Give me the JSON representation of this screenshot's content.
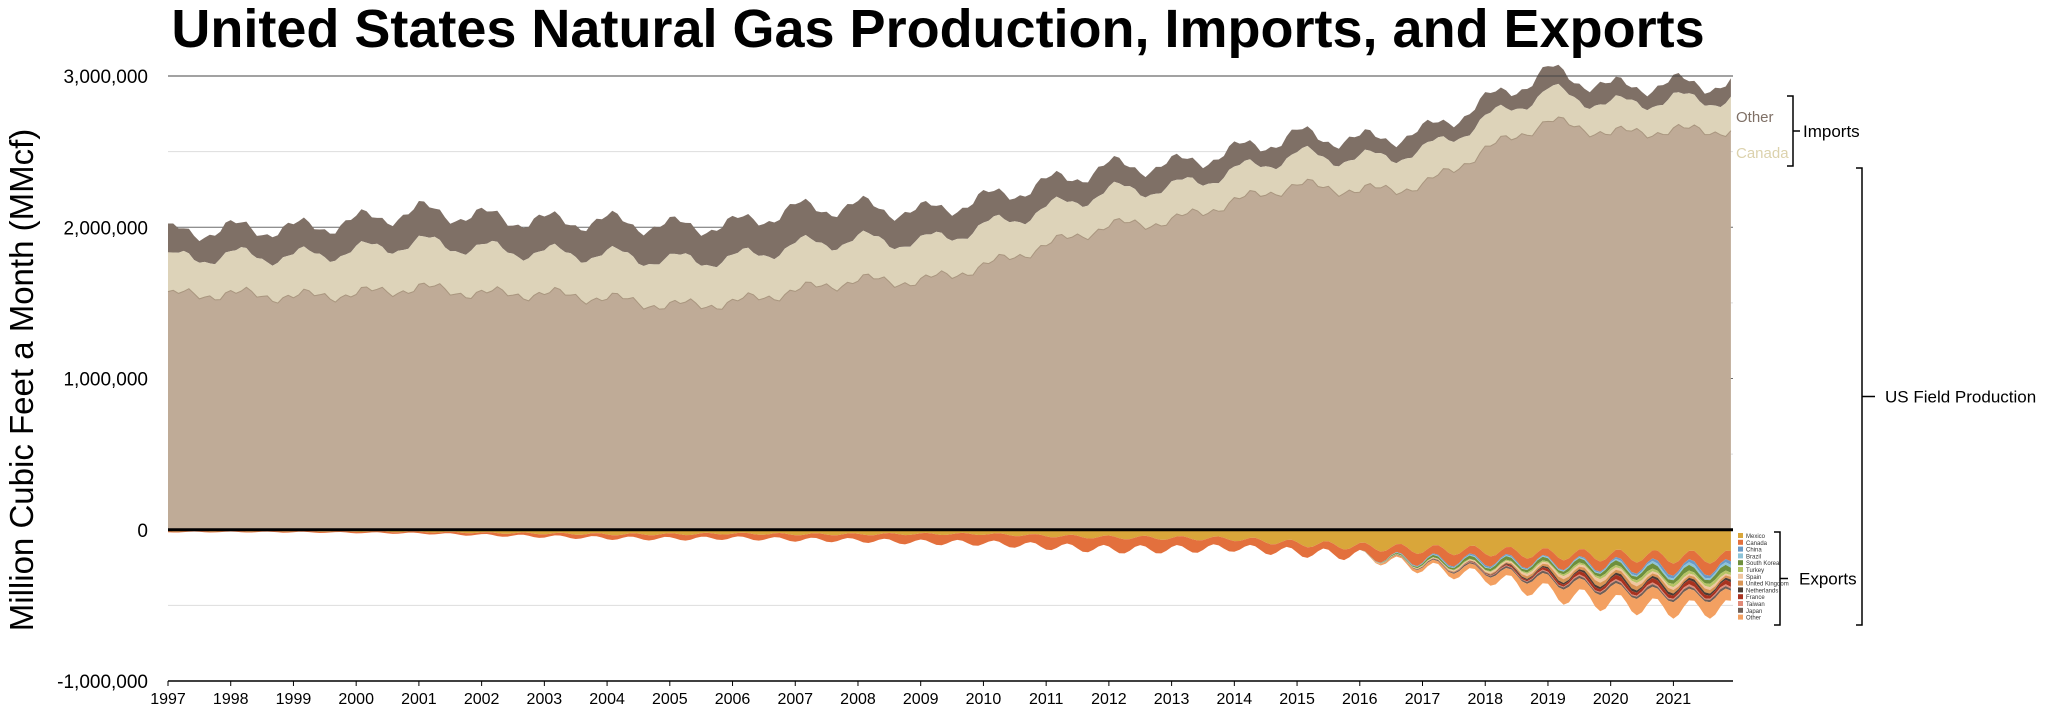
{
  "chart_data": {
    "type": "area",
    "title": "United States Natural Gas Production, Imports, and Exports",
    "ylabel": "Million Cubic Feet a Month (MMcf)",
    "xlabel": "",
    "ylim": [
      -1000000,
      3000000
    ],
    "yticks": [
      3000000,
      2000000,
      1000000,
      0,
      -1000000
    ],
    "ytick_labels": [
      "3,000,000",
      "2,000,000",
      "1,000,000",
      "0",
      "-1,000,000"
    ],
    "x": [
      1997,
      1998,
      1999,
      2000,
      2001,
      2002,
      2003,
      2004,
      2005,
      2006,
      2007,
      2008,
      2009,
      2010,
      2011,
      2012,
      2013,
      2014,
      2015,
      2016,
      2017,
      2018,
      2019,
      2020,
      2021
    ],
    "xtick_labels": [
      "1997",
      "1998",
      "1999",
      "2000",
      "2001",
      "2002",
      "2003",
      "2004",
      "2005",
      "2006",
      "2007",
      "2008",
      "2009",
      "2010",
      "2011",
      "2012",
      "2013",
      "2014",
      "2015",
      "2016",
      "2017",
      "2018",
      "2019",
      "2020",
      "2021"
    ],
    "grid": true,
    "series": [
      {
        "name": "US Field Production",
        "group": "production",
        "color": "#bfab97",
        "values": [
          1550000,
          1560000,
          1540000,
          1560000,
          1600000,
          1560000,
          1560000,
          1530000,
          1480000,
          1500000,
          1580000,
          1650000,
          1640000,
          1740000,
          1880000,
          2010000,
          2040000,
          2170000,
          2280000,
          2240000,
          2270000,
          2510000,
          2700000,
          2620000,
          2640000
        ]
      },
      {
        "name": "Canada",
        "group": "imports",
        "color": "#ddd3b9",
        "values": [
          240000,
          255000,
          265000,
          285000,
          300000,
          300000,
          270000,
          290000,
          300000,
          290000,
          300000,
          270000,
          260000,
          260000,
          240000,
          230000,
          220000,
          200000,
          200000,
          210000,
          230000,
          200000,
          200000,
          190000,
          205000
        ]
      },
      {
        "name": "Other",
        "group": "imports",
        "color": "#7f7066",
        "values": [
          170000,
          175000,
          185000,
          195000,
          210000,
          210000,
          210000,
          220000,
          225000,
          225000,
          240000,
          220000,
          200000,
          185000,
          170000,
          160000,
          150000,
          135000,
          130000,
          125000,
          125000,
          120000,
          130000,
          115000,
          105000
        ]
      }
    ],
    "export_series": [
      {
        "name": "Mexico",
        "color": "#d9a63a",
        "values": [
          -10000,
          -10000,
          -10000,
          -12000,
          -14000,
          -20000,
          -25000,
          -30000,
          -30000,
          -25000,
          -30000,
          -30000,
          -28000,
          -28000,
          -40000,
          -50000,
          -55000,
          -60000,
          -90000,
          -110000,
          -130000,
          -140000,
          -160000,
          -170000,
          -180000
        ]
      },
      {
        "name": "Canada",
        "color": "#e3703d",
        "values": [
          -5000,
          -5000,
          -6000,
          -8000,
          -10000,
          -15000,
          -20000,
          -25000,
          -30000,
          -30000,
          -35000,
          -40000,
          -55000,
          -60000,
          -70000,
          -80000,
          -75000,
          -60000,
          -60000,
          -60000,
          -70000,
          -60000,
          -55000,
          -60000,
          -70000
        ]
      },
      {
        "name": "China",
        "color": "#6a9ac7",
        "values": [
          0,
          0,
          0,
          0,
          0,
          0,
          0,
          0,
          0,
          0,
          0,
          0,
          0,
          0,
          0,
          0,
          0,
          0,
          0,
          0,
          -5000,
          -10000,
          -5000,
          -10000,
          -20000
        ]
      },
      {
        "name": "Brazil",
        "color": "#8dc3d8",
        "values": [
          0,
          0,
          0,
          0,
          0,
          0,
          0,
          0,
          0,
          0,
          0,
          0,
          0,
          0,
          0,
          0,
          0,
          0,
          0,
          0,
          -3000,
          -5000,
          -5000,
          -8000,
          -15000
        ]
      },
      {
        "name": "South Korea",
        "color": "#6e8f3c",
        "values": [
          0,
          0,
          0,
          0,
          0,
          0,
          0,
          0,
          0,
          0,
          0,
          0,
          0,
          0,
          0,
          0,
          0,
          0,
          0,
          0,
          -10000,
          -20000,
          -20000,
          -25000,
          -30000
        ]
      },
      {
        "name": "Turkey",
        "color": "#b5c466",
        "values": [
          0,
          0,
          0,
          0,
          0,
          0,
          0,
          0,
          0,
          0,
          0,
          0,
          0,
          0,
          0,
          0,
          0,
          0,
          0,
          0,
          -3000,
          -5000,
          -10000,
          -15000,
          -20000
        ]
      },
      {
        "name": "Spain",
        "color": "#f0c6a0",
        "values": [
          0,
          0,
          0,
          0,
          0,
          0,
          0,
          0,
          0,
          0,
          0,
          0,
          0,
          0,
          0,
          0,
          0,
          0,
          0,
          0,
          -3000,
          -8000,
          -15000,
          -20000,
          -15000
        ]
      },
      {
        "name": "United Kingdom",
        "color": "#d99555",
        "values": [
          0,
          0,
          0,
          0,
          0,
          0,
          0,
          0,
          0,
          0,
          0,
          0,
          0,
          0,
          0,
          0,
          0,
          0,
          0,
          0,
          -2000,
          -5000,
          -20000,
          -25000,
          -20000
        ]
      },
      {
        "name": "Netherlands",
        "color": "#4a3c34",
        "values": [
          0,
          0,
          0,
          0,
          0,
          0,
          0,
          0,
          0,
          0,
          0,
          0,
          0,
          0,
          0,
          0,
          0,
          0,
          0,
          0,
          0,
          -3000,
          -10000,
          -15000,
          -15000
        ]
      },
      {
        "name": "France",
        "color": "#a8321f",
        "values": [
          0,
          0,
          0,
          0,
          0,
          0,
          0,
          0,
          0,
          0,
          0,
          0,
          0,
          0,
          0,
          0,
          0,
          0,
          0,
          0,
          0,
          -3000,
          -15000,
          -25000,
          -25000
        ]
      },
      {
        "name": "Taiwan",
        "color": "#e08a78",
        "values": [
          0,
          0,
          0,
          0,
          0,
          0,
          0,
          0,
          0,
          0,
          0,
          0,
          0,
          0,
          0,
          0,
          0,
          0,
          0,
          0,
          0,
          -3000,
          -5000,
          -8000,
          -10000
        ]
      },
      {
        "name": "Japan",
        "color": "#6f5f57",
        "values": [
          0,
          0,
          0,
          0,
          0,
          0,
          0,
          0,
          0,
          0,
          0,
          0,
          0,
          0,
          0,
          0,
          0,
          0,
          0,
          0,
          -5000,
          -10000,
          -15000,
          -15000,
          -15000
        ]
      },
      {
        "name": "Other",
        "color": "#f3a061",
        "values": [
          0,
          0,
          0,
          0,
          0,
          0,
          0,
          0,
          0,
          0,
          0,
          0,
          0,
          0,
          0,
          0,
          0,
          0,
          0,
          0,
          -20000,
          -40000,
          -80000,
          -90000,
          -90000
        ]
      }
    ],
    "annotations": {
      "imports": "Imports",
      "production": "US Field Production",
      "exports": "Exports",
      "imports_other": "Other",
      "imports_canada": "Canada"
    }
  },
  "colors": {
    "production": "#bfab97",
    "imports_canada": "#ddd3b9",
    "imports_other": "#7f7066",
    "axis": "#000000",
    "major_grid": "#6b6b6b",
    "minor_grid": "#dddddd"
  }
}
